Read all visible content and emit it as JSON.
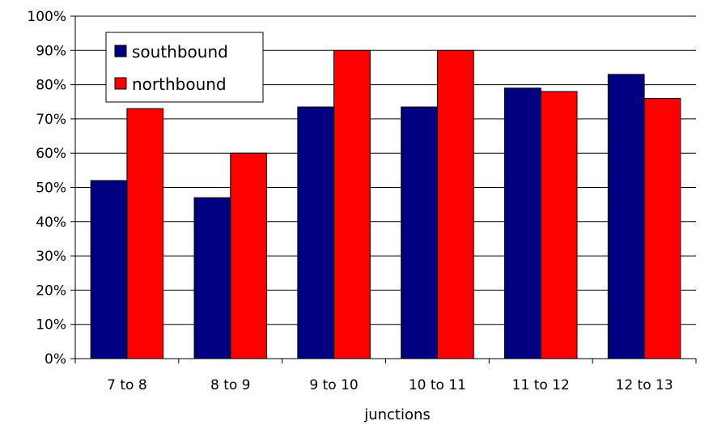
{
  "chart_data": {
    "type": "bar",
    "title": "",
    "xlabel": "junctions",
    "ylabel": "",
    "categories": [
      "7 to 8",
      "8 to 9",
      "9 to 10",
      "10 to 11",
      "11 to 12",
      "12 to 13"
    ],
    "series": [
      {
        "name": "southbound",
        "color": "#000080",
        "values": [
          52,
          47,
          73.5,
          73.5,
          79,
          83
        ]
      },
      {
        "name": "northbound",
        "color": "#ff0000",
        "values": [
          73,
          60,
          90,
          90,
          78,
          76
        ]
      }
    ],
    "ylim": [
      0,
      100
    ],
    "yticks": [
      0,
      10,
      20,
      30,
      40,
      50,
      60,
      70,
      80,
      90,
      100
    ],
    "ytick_labels": [
      "0%",
      "10%",
      "20%",
      "30%",
      "40%",
      "50%",
      "60%",
      "70%",
      "80%",
      "90%",
      "100%"
    ],
    "grid": true,
    "legend_position": "top-left"
  }
}
